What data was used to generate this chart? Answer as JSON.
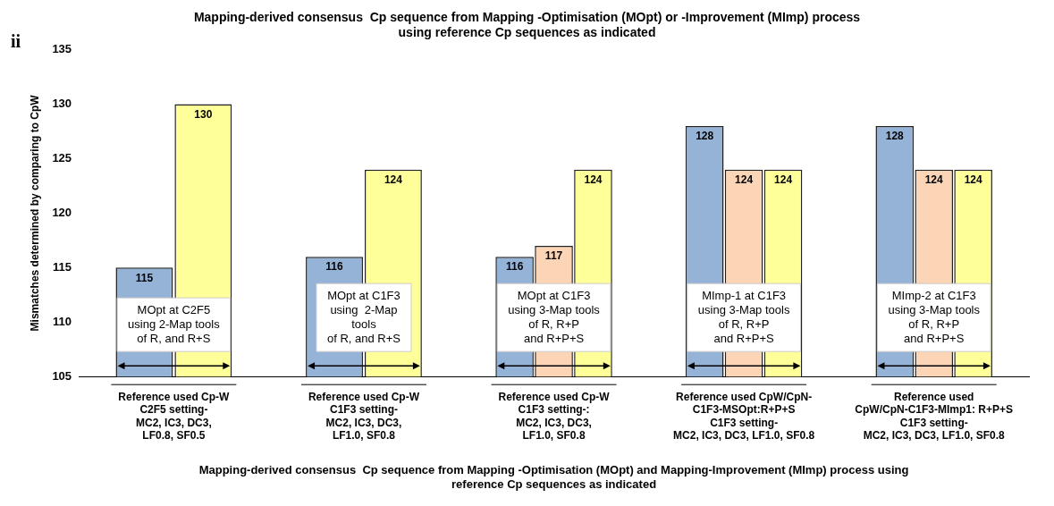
{
  "chart_data": {
    "type": "bar",
    "title": "Mapping-derived consensus  Cp sequence from Mapping -Optimisation (MOpt) or -Improvement (MImp) process\nusing reference Cp sequences as indicated",
    "xlabel": "Mapping-derived consensus  Cp sequence from Mapping -Optimisation (MOpt) and Mapping-Improvement (MImp) process using\nreference Cp sequences as indicated",
    "ylabel": "Mismatches determined by comparing to CpW",
    "categories": [
      "Reference used Cp-W\nC2F5 setting-\nMC2, IC3, DC3,\nLF0.8, SF0.5",
      "Reference used Cp-W\nC1F3 setting-\nMC2, IC3, DC3,\nLF1.0, SF0.8",
      "Reference used Cp-W\nC1F3 setting-:\nMC2, IC3, DC3,\nLF1.0, SF0.8",
      "Reference used CpW/CpN-\nC1F3-MSOpt:R+P+S\nC1F3 setting-\nMC2, IC3, DC3, LF1.0, SF0.8",
      "Reference used\nCpW/CpN-C1F3-MImp1: R+P+S\nC1F3 setting-\nMC2, IC3, DC3, LF1.0, SF0.8"
    ],
    "series": [
      {
        "color": "#95b3d7",
        "values": [
          115,
          116,
          116,
          128,
          128
        ]
      },
      {
        "color": "#fbd5b5",
        "values": [
          null,
          null,
          117,
          124,
          124
        ]
      },
      {
        "color": "#ffff99",
        "values": [
          130,
          124,
          124,
          124,
          124
        ]
      }
    ],
    "ylim": [
      105,
      135
    ],
    "yticks": [
      105,
      110,
      115,
      120,
      125,
      130,
      135
    ],
    "grid": false,
    "legend": false,
    "data_labels": true,
    "annotations": [
      "ii",
      "MOpt at C2F5\nusing 2-Map tools\nof R, and R+S",
      "MOpt at C1F3\nusing  2-Map\ntools\nof R, and R+S",
      "MOpt at C1F3\nusing 3-Map tools\nof R, R+P\nand R+P+S",
      "MImp-1 at C1F3\nusing 3-Map tools\nof R, R+P\nand R+P+S",
      "MImp-2 at C1F3\nusing 3-Map tools\nof R, R+P\nand R+P+S"
    ]
  }
}
